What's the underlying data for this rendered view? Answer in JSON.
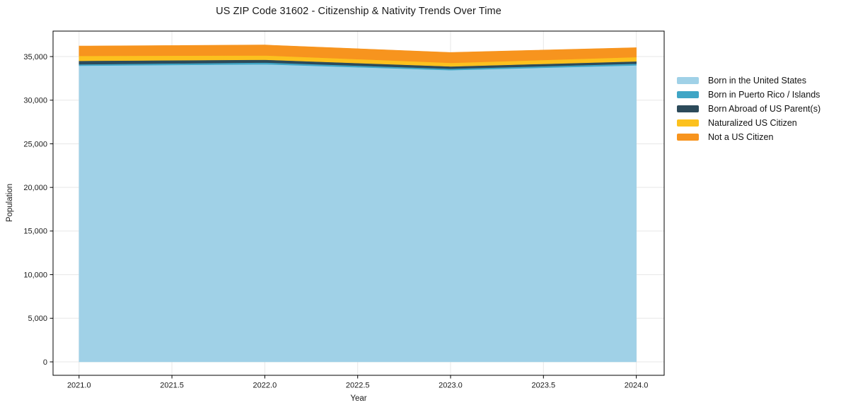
{
  "title": "US ZIP Code 31602 - Citizenship & Nativity Trends Over Time",
  "axes": {
    "x_label": "Year",
    "y_label": "Population"
  },
  "chart_data": {
    "type": "area",
    "stacked": true,
    "title": "US ZIP Code 31602 - Citizenship & Nativity Trends Over Time",
    "xlabel": "Year",
    "ylabel": "Population",
    "x": [
      2021,
      2022,
      2023,
      2024
    ],
    "series": [
      {
        "name": "Born in the United States",
        "color": "#A0D1E7",
        "values": [
          33950,
          34120,
          33450,
          34000
        ]
      },
      {
        "name": "Born in Puerto Rico / Islands",
        "color": "#3FA5C5",
        "values": [
          160,
          195,
          160,
          185
        ]
      },
      {
        "name": "Born Abroad of US Parent(s)",
        "color": "#2C4A5A",
        "values": [
          400,
          325,
          270,
          265
        ]
      },
      {
        "name": "Naturalized US Citizen",
        "color": "#FCC11E",
        "values": [
          570,
          490,
          405,
          490
        ]
      },
      {
        "name": "Not a US Citizen",
        "color": "#F7941E",
        "values": [
          1130,
          1200,
          1190,
          1085
        ]
      }
    ],
    "xlim": [
      2020.86,
      2024.15
    ],
    "ylim": [
      -1540,
      37920
    ],
    "x_ticks": [
      {
        "value": 2021.0,
        "label": "2021.0"
      },
      {
        "value": 2021.5,
        "label": "2021.5"
      },
      {
        "value": 2022.0,
        "label": "2022.0"
      },
      {
        "value": 2022.5,
        "label": "2022.5"
      },
      {
        "value": 2023.0,
        "label": "2023.0"
      },
      {
        "value": 2023.5,
        "label": "2023.5"
      },
      {
        "value": 2024.0,
        "label": "2024.0"
      }
    ],
    "y_ticks": [
      {
        "value": 0,
        "label": "0"
      },
      {
        "value": 5000,
        "label": "5,000"
      },
      {
        "value": 10000,
        "label": "10,000"
      },
      {
        "value": 15000,
        "label": "15,000"
      },
      {
        "value": 20000,
        "label": "20,000"
      },
      {
        "value": 25000,
        "label": "25,000"
      },
      {
        "value": 30000,
        "label": "30,000"
      },
      {
        "value": 35000,
        "label": "35,000"
      }
    ],
    "grid": true,
    "grid_color": "#e7e7e7",
    "spine_color": "#000000",
    "legend_position": "outside-right"
  }
}
